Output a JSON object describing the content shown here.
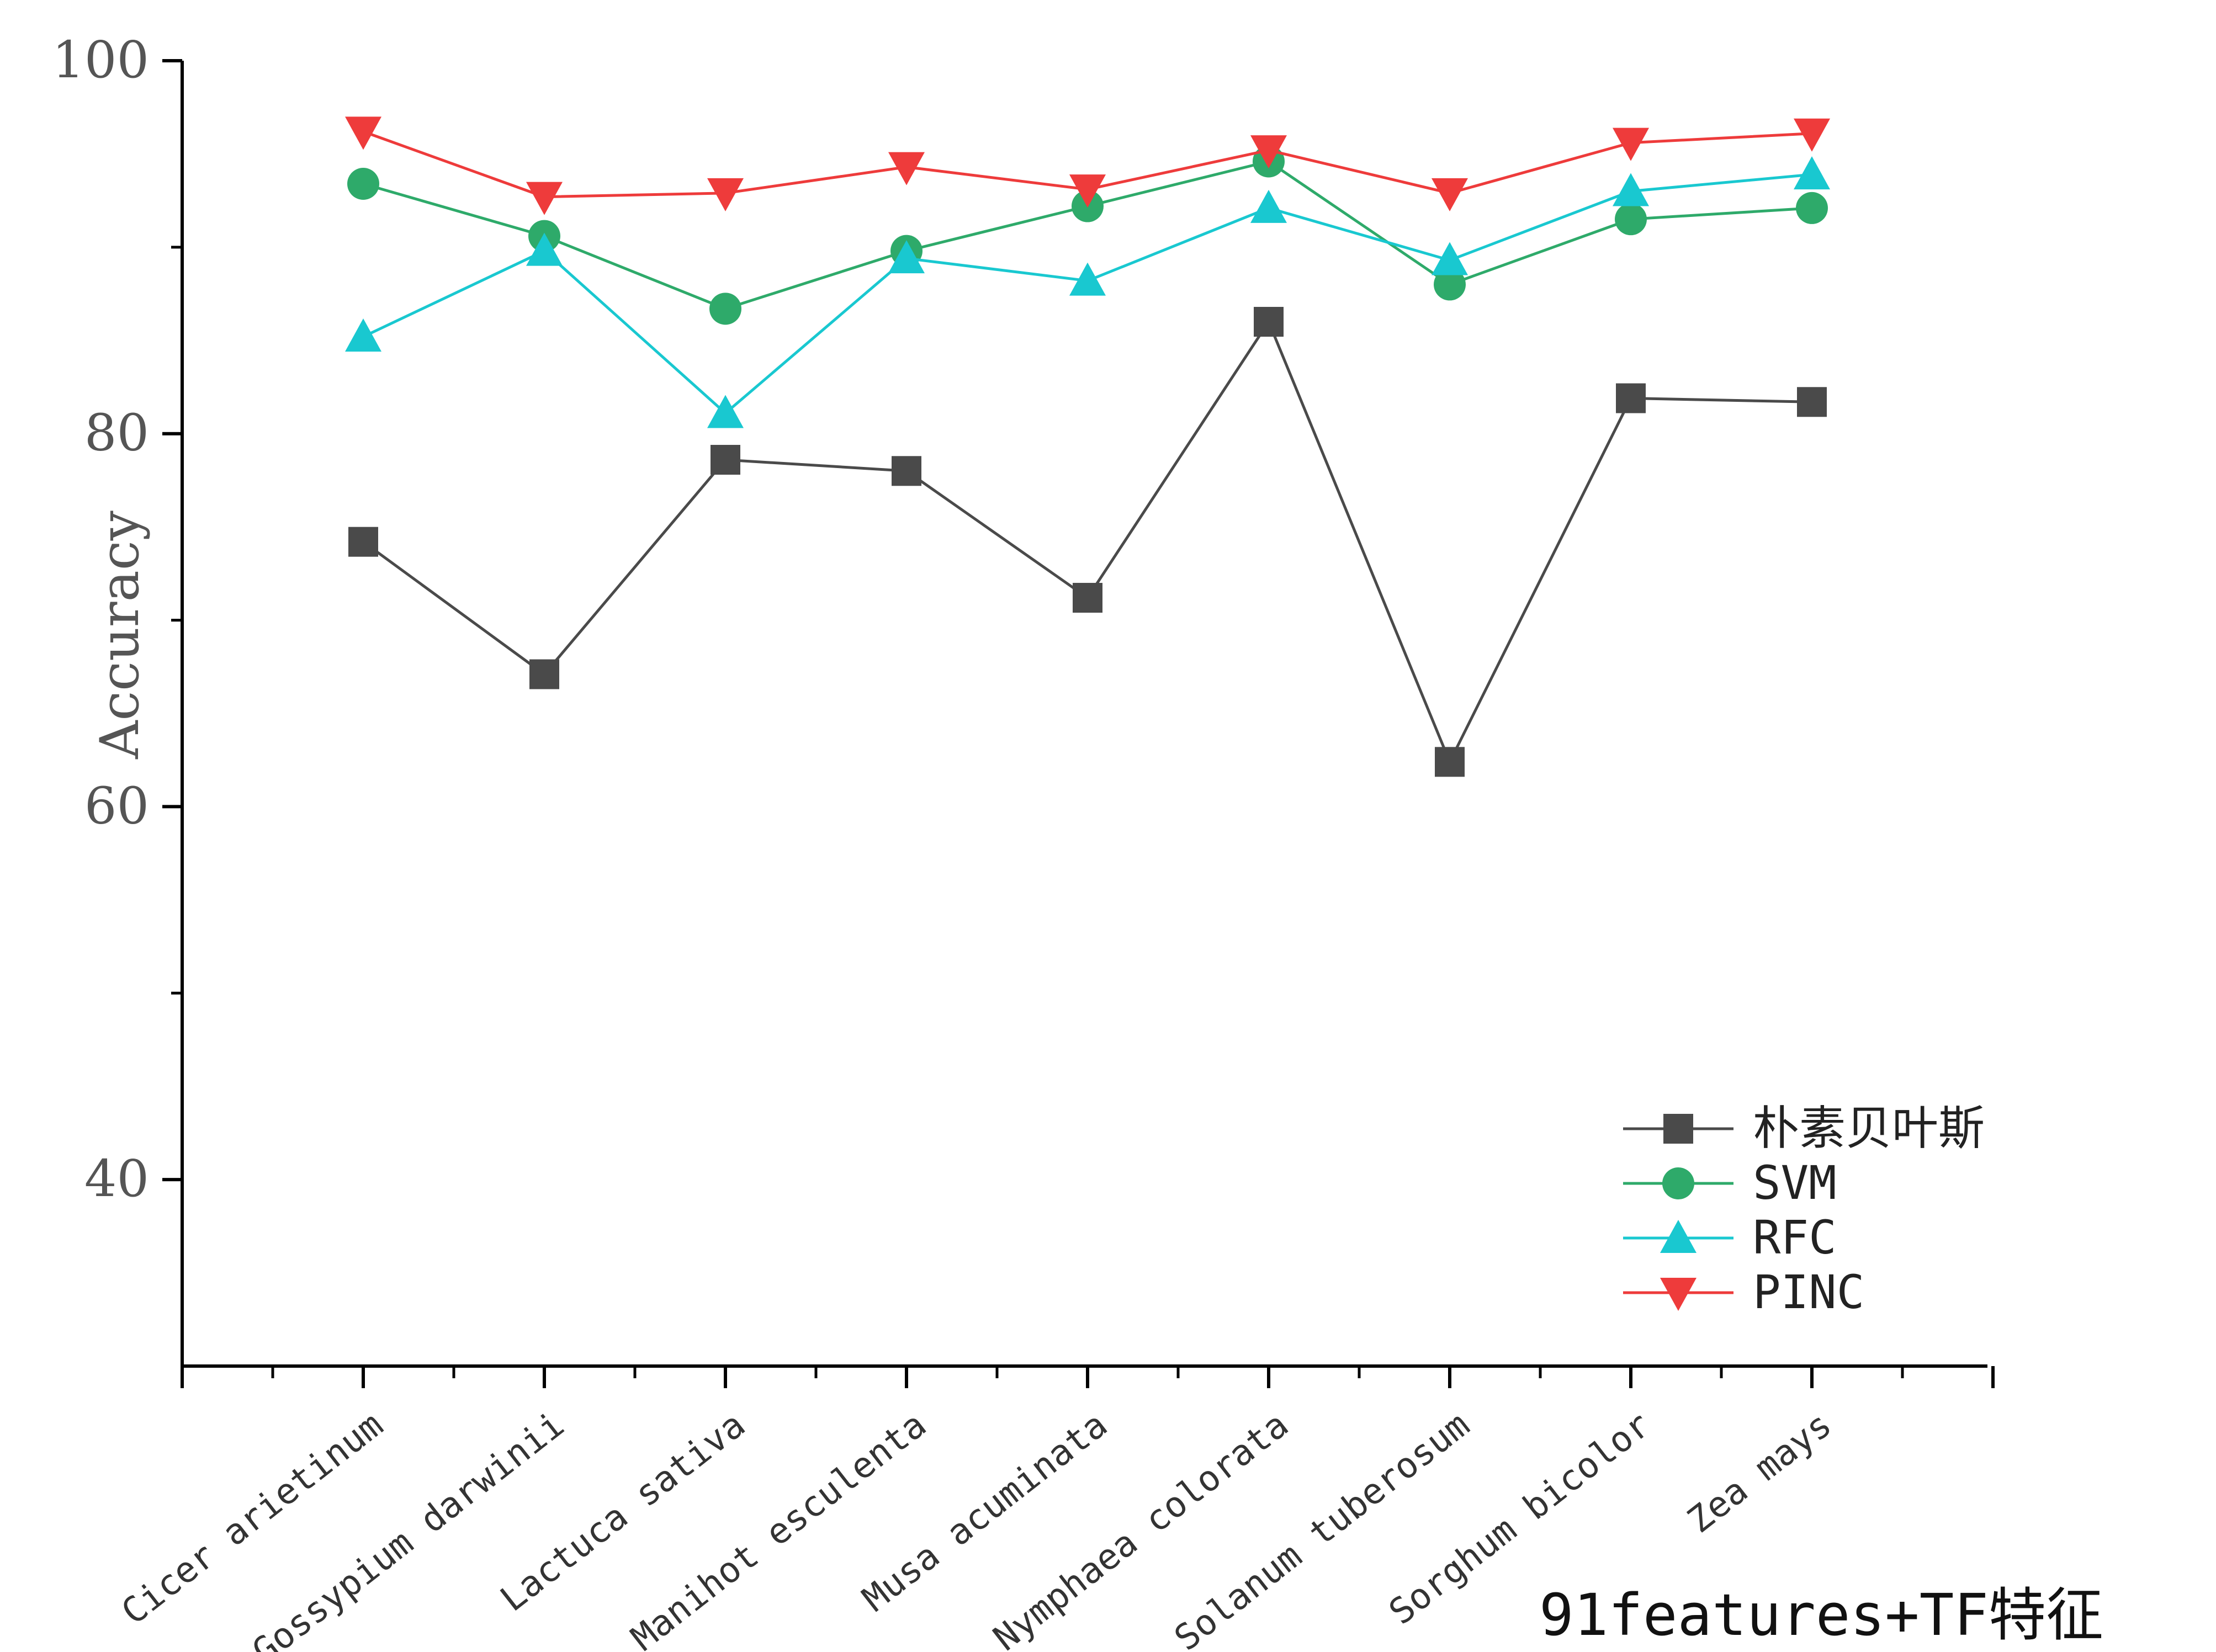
{
  "chart_data": {
    "type": "line",
    "ylabel": "Accuracy",
    "ylim": [
      30,
      100
    ],
    "yticks": [
      "100",
      "80",
      "60",
      "40"
    ],
    "categories": [
      "Cicer arietinum",
      "Gossypium darwinii",
      "Lactuca sativa",
      "Manihot esculenta",
      "Musa acuminata",
      "Nymphaea colorata",
      "Solanum tuberosum",
      "Sorghum bicolor",
      "Zea mays"
    ],
    "series": [
      {
        "name": "朴素贝叶斯",
        "color": "#4a4a4a",
        "marker": "square",
        "values": [
          74.2,
          67.1,
          78.6,
          78.0,
          71.2,
          86.0,
          62.4,
          81.9,
          81.7
        ]
      },
      {
        "name": "SVM",
        "color": "#2eaa6a",
        "marker": "circle",
        "values": [
          93.4,
          90.6,
          86.7,
          89.8,
          92.2,
          94.6,
          88.0,
          91.5,
          92.1
        ]
      },
      {
        "name": "RFC",
        "color": "#19c8d0",
        "marker": "triangle-up",
        "values": [
          85.2,
          89.8,
          81.1,
          89.4,
          88.2,
          92.1,
          89.3,
          93.0,
          93.9
        ]
      },
      {
        "name": "PINC",
        "color": "#ee3b3b",
        "marker": "triangle-down",
        "values": [
          96.2,
          92.7,
          92.9,
          94.3,
          93.1,
          95.2,
          92.9,
          95.6,
          96.1
        ]
      }
    ],
    "legend_position": "bottom-right",
    "grid": false
  },
  "caption": "91features+TF特征"
}
